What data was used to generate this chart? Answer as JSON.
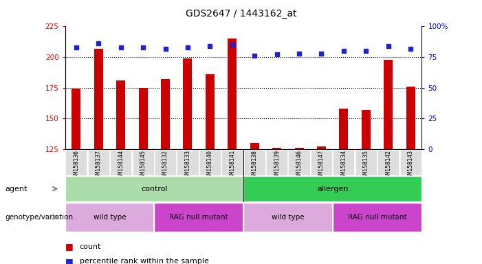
{
  "title": "GDS2647 / 1443162_at",
  "samples": [
    "GSM158136",
    "GSM158137",
    "GSM158144",
    "GSM158145",
    "GSM158132",
    "GSM158133",
    "GSM158140",
    "GSM158141",
    "GSM158138",
    "GSM158139",
    "GSM158146",
    "GSM158147",
    "GSM158134",
    "GSM158135",
    "GSM158142",
    "GSM158143"
  ],
  "counts": [
    174,
    207,
    181,
    175,
    182,
    199,
    186,
    215,
    130,
    126,
    126,
    127,
    158,
    157,
    198,
    176
  ],
  "percentiles": [
    83,
    86,
    83,
    83,
    82,
    83,
    84,
    85,
    76,
    77,
    78,
    78,
    80,
    80,
    84,
    82
  ],
  "ylim_left": [
    125,
    225
  ],
  "ylim_right": [
    0,
    100
  ],
  "yticks_left": [
    125,
    150,
    175,
    200,
    225
  ],
  "yticks_right": [
    0,
    25,
    50,
    75,
    100
  ],
  "bar_color": "#cc0000",
  "dot_color": "#2222cc",
  "background_color": "#ffffff",
  "agent_labels": [
    {
      "text": "control",
      "start": 0,
      "end": 7,
      "color": "#aaddaa"
    },
    {
      "text": "allergen",
      "start": 8,
      "end": 15,
      "color": "#33cc55"
    }
  ],
  "genotype_labels": [
    {
      "text": "wild type",
      "start": 0,
      "end": 3,
      "color": "#ddaadd"
    },
    {
      "text": "RAG null mutant",
      "start": 4,
      "end": 7,
      "color": "#cc44cc"
    },
    {
      "text": "wild type",
      "start": 8,
      "end": 11,
      "color": "#ddaadd"
    },
    {
      "text": "RAG null mutant",
      "start": 12,
      "end": 15,
      "color": "#cc44cc"
    }
  ],
  "legend_count_color": "#cc0000",
  "legend_dot_color": "#2222cc",
  "label_agent": "agent",
  "label_genotype": "genotype/variation",
  "tick_bg_color": "#dddddd"
}
